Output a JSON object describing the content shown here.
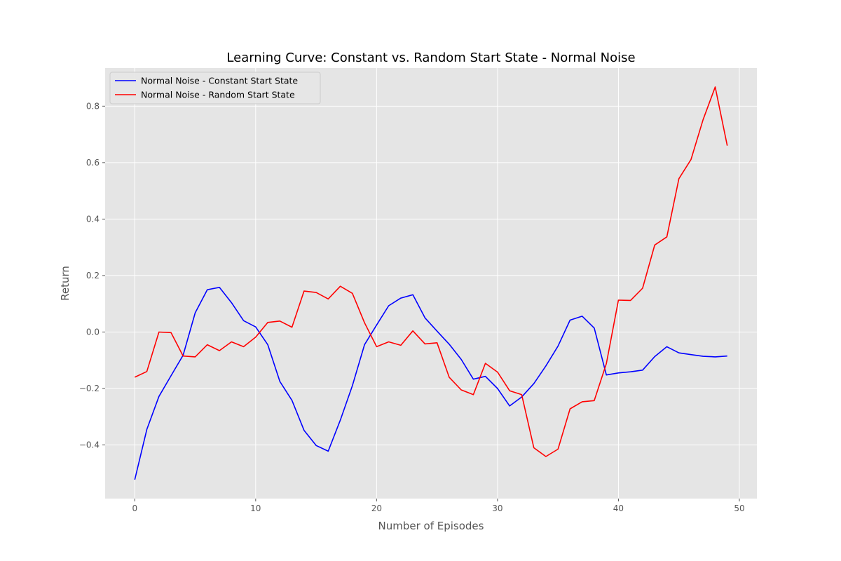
{
  "chart_data": {
    "type": "line",
    "title": "Learning Curve: Constant vs. Random Start State - Normal Noise",
    "xlabel": "Number of Episodes",
    "ylabel": "Return",
    "xlim": [
      -2.45,
      51.45
    ],
    "ylim": [
      -0.59,
      0.935
    ],
    "xticks": [
      0,
      10,
      20,
      30,
      40,
      50
    ],
    "yticks": [
      -0.4,
      -0.2,
      0.0,
      0.2,
      0.4,
      0.6,
      0.8
    ],
    "xtick_labels": [
      "0",
      "10",
      "20",
      "30",
      "40",
      "50"
    ],
    "ytick_labels": [
      "−0.4",
      "−0.2",
      "0.0",
      "0.2",
      "0.4",
      "0.6",
      "0.8"
    ],
    "grid": true,
    "legend_position": "top-left",
    "background_color": "#e5e5e5",
    "x": [
      0,
      1,
      2,
      3,
      4,
      5,
      6,
      7,
      8,
      9,
      10,
      11,
      12,
      13,
      14,
      15,
      16,
      17,
      18,
      19,
      20,
      21,
      22,
      23,
      24,
      25,
      26,
      27,
      28,
      29,
      30,
      31,
      32,
      33,
      34,
      35,
      36,
      37,
      38,
      39,
      40,
      41,
      42,
      43,
      44,
      45,
      46,
      47,
      48,
      49
    ],
    "series": [
      {
        "name": "Normal Noise - Constant Start State",
        "color": "#0000ff",
        "values": [
          -0.523,
          -0.345,
          -0.228,
          -0.155,
          -0.082,
          0.068,
          0.15,
          0.158,
          0.104,
          0.04,
          0.018,
          -0.045,
          -0.175,
          -0.242,
          -0.348,
          -0.402,
          -0.422,
          -0.312,
          -0.19,
          -0.045,
          0.025,
          0.093,
          0.12,
          0.132,
          0.05,
          0.003,
          -0.043,
          -0.097,
          -0.167,
          -0.157,
          -0.2,
          -0.262,
          -0.23,
          -0.183,
          -0.12,
          -0.05,
          0.042,
          0.056,
          0.014,
          -0.152,
          -0.145,
          -0.141,
          -0.135,
          -0.087,
          -0.052,
          -0.074,
          -0.08,
          -0.086,
          -0.088,
          -0.085
        ]
      },
      {
        "name": "Normal Noise - Random Start State",
        "color": "#ff0000",
        "values": [
          -0.16,
          -0.14,
          0.0,
          -0.002,
          -0.085,
          -0.088,
          -0.045,
          -0.066,
          -0.035,
          -0.052,
          -0.018,
          0.034,
          0.039,
          0.017,
          0.145,
          0.14,
          0.117,
          0.162,
          0.137,
          0.033,
          -0.052,
          -0.035,
          -0.047,
          0.004,
          -0.042,
          -0.038,
          -0.16,
          -0.205,
          -0.222,
          -0.111,
          -0.142,
          -0.208,
          -0.222,
          -0.41,
          -0.441,
          -0.415,
          -0.272,
          -0.247,
          -0.243,
          -0.112,
          0.113,
          0.112,
          0.155,
          0.308,
          0.337,
          0.543,
          0.611,
          0.752,
          0.868,
          0.66
        ]
      }
    ]
  }
}
